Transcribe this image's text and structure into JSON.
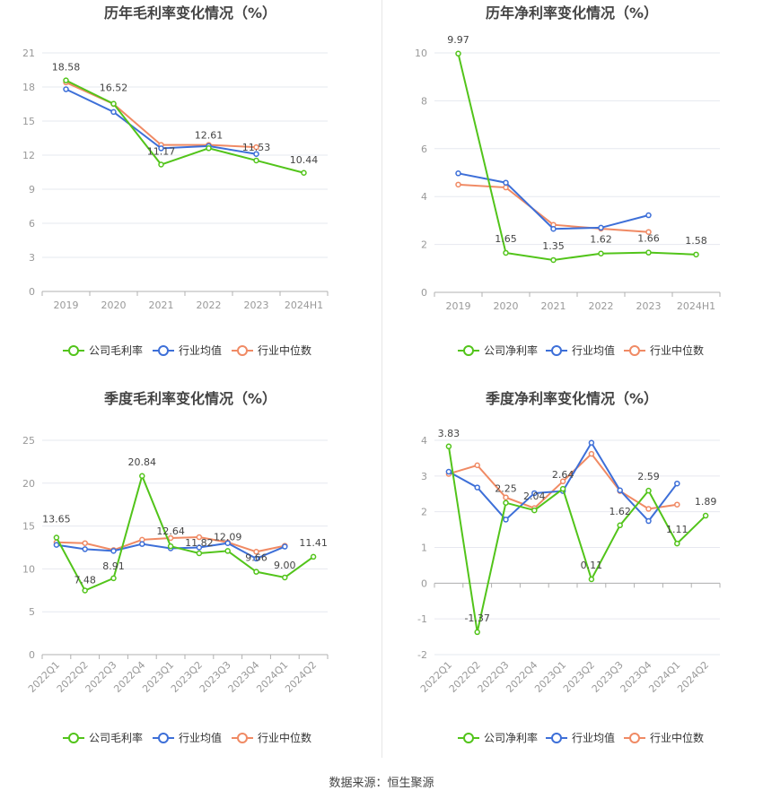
{
  "source_text": "数据来源：恒生聚源",
  "colors": {
    "company": "#52c41a",
    "avg": "#3d6fd8",
    "median": "#f08a64",
    "grid": "#e6e8ef",
    "axis": "#999999",
    "title": "#444444"
  },
  "chart_data": [
    {
      "type": "line",
      "title": "历年毛利率变化情况（%）",
      "categories": [
        "2019",
        "2020",
        "2021",
        "2022",
        "2023",
        "2024H1"
      ],
      "ylim": [
        0,
        21
      ],
      "yticks": [
        0,
        3,
        6,
        9,
        12,
        15,
        18,
        21
      ],
      "grid": true,
      "legend_position": "bottom",
      "series": [
        {
          "name": "公司毛利率",
          "role": "company",
          "values": [
            18.58,
            16.52,
            11.17,
            12.61,
            11.53,
            10.44
          ],
          "labels": [
            "18.58",
            "16.52",
            "11.17",
            "12.61",
            "11.53",
            "10.44"
          ]
        },
        {
          "name": "行业均值",
          "role": "avg",
          "values": [
            17.8,
            15.8,
            12.6,
            12.8,
            12.1,
            null
          ]
        },
        {
          "name": "行业中位数",
          "role": "median",
          "values": [
            18.4,
            16.5,
            12.9,
            12.9,
            12.7,
            null
          ]
        }
      ]
    },
    {
      "type": "line",
      "title": "历年净利率变化情况（%）",
      "categories": [
        "2019",
        "2020",
        "2021",
        "2022",
        "2023",
        "2024H1"
      ],
      "ylim": [
        0,
        10
      ],
      "yticks": [
        0,
        2,
        4,
        6,
        8,
        10
      ],
      "grid": true,
      "legend_position": "bottom",
      "series": [
        {
          "name": "公司净利率",
          "role": "company",
          "values": [
            9.97,
            1.65,
            1.35,
            1.62,
            1.66,
            1.58
          ],
          "labels": [
            "9.97",
            "1.65",
            "1.35",
            "1.62",
            "1.66",
            "1.58"
          ]
        },
        {
          "name": "行业均值",
          "role": "avg",
          "values": [
            4.97,
            4.58,
            2.65,
            2.7,
            3.22,
            null
          ]
        },
        {
          "name": "行业中位数",
          "role": "median",
          "values": [
            4.5,
            4.38,
            2.82,
            2.66,
            2.52,
            null
          ]
        }
      ]
    },
    {
      "type": "line",
      "title": "季度毛利率变化情况（%）",
      "categories": [
        "2022Q1",
        "2022Q2",
        "2022Q3",
        "2022Q4",
        "2023Q1",
        "2023Q2",
        "2023Q3",
        "2023Q4",
        "2024Q1",
        "2024Q2"
      ],
      "ylim": [
        0,
        25
      ],
      "yticks": [
        0,
        5,
        10,
        15,
        20,
        25
      ],
      "grid": true,
      "legend_position": "bottom",
      "series": [
        {
          "name": "公司毛利率",
          "role": "company",
          "values": [
            13.65,
            7.48,
            8.91,
            20.84,
            12.64,
            11.82,
            12.09,
            9.66,
            9.0,
            11.41
          ],
          "labels": [
            "13.65",
            "7.48",
            "8.91",
            "20.84",
            "12.64",
            "11.82",
            "12.09",
            "9.66",
            "9.00",
            "11.41"
          ]
        },
        {
          "name": "行业均值",
          "role": "avg",
          "values": [
            12.8,
            12.3,
            12.1,
            12.9,
            12.4,
            12.5,
            13.0,
            11.2,
            12.6,
            null
          ]
        },
        {
          "name": "行业中位数",
          "role": "median",
          "values": [
            13.1,
            13.0,
            12.2,
            13.4,
            13.6,
            13.7,
            13.1,
            12.0,
            12.7,
            null
          ]
        }
      ]
    },
    {
      "type": "line",
      "title": "季度净利率变化情况（%）",
      "categories": [
        "2022Q1",
        "2022Q2",
        "2022Q3",
        "2022Q4",
        "2023Q1",
        "2023Q2",
        "2023Q3",
        "2023Q4",
        "2024Q1",
        "2024Q2"
      ],
      "ylim": [
        -2,
        4
      ],
      "yticks": [
        -2,
        -1,
        0,
        1,
        2,
        3,
        4
      ],
      "grid": true,
      "legend_position": "bottom",
      "series": [
        {
          "name": "公司净利率",
          "role": "company",
          "values": [
            3.83,
            -1.37,
            2.25,
            2.04,
            2.64,
            0.11,
            1.62,
            2.59,
            1.11,
            1.89
          ],
          "labels": [
            "3.83",
            "-1.37",
            "2.25",
            "2.04",
            "2.64",
            "0.11",
            "1.62",
            "2.59",
            "1.11",
            "1.89"
          ]
        },
        {
          "name": "行业均值",
          "role": "avg",
          "values": [
            3.12,
            2.68,
            1.78,
            2.52,
            2.58,
            3.93,
            2.6,
            1.74,
            2.79,
            null
          ]
        },
        {
          "name": "行业中位数",
          "role": "median",
          "values": [
            3.06,
            3.3,
            2.4,
            2.1,
            2.85,
            3.62,
            2.58,
            2.08,
            2.2,
            null
          ]
        }
      ]
    }
  ]
}
